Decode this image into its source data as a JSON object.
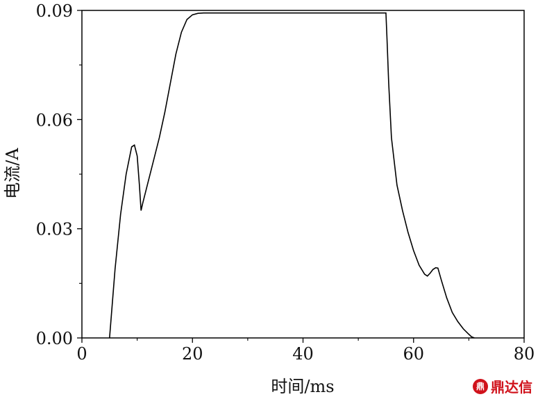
{
  "chart_data": {
    "type": "line",
    "title": "",
    "xlabel": "时间/ms",
    "ylabel": "电流/A",
    "xlim": [
      0,
      80
    ],
    "ylim": [
      0,
      0.09
    ],
    "xticks": [
      0,
      20,
      40,
      60,
      80
    ],
    "xtick_labels": [
      "0",
      "20",
      "40",
      "60",
      "80"
    ],
    "yticks": [
      0,
      0.03,
      0.06,
      0.09
    ],
    "ytick_labels": [
      "0.00",
      "0.03",
      "0.06",
      "0.09"
    ],
    "grid": false,
    "series": [
      {
        "name": "",
        "color": "#000000",
        "x": [
          5.0,
          6.0,
          7.0,
          8.0,
          9.0,
          9.5,
          10.0,
          10.4,
          10.7,
          11.0,
          12.0,
          13.0,
          14.0,
          15.0,
          16.0,
          17.0,
          18.0,
          19.0,
          20.0,
          21.0,
          22.0,
          25.0,
          30.0,
          40.0,
          50.0,
          55.0,
          55.2,
          55.5,
          56.0,
          57.0,
          58.0,
          59.0,
          60.0,
          61.0,
          62.0,
          62.5,
          63.0,
          63.5,
          64.0,
          64.4,
          65.0,
          66.0,
          67.0,
          68.0,
          69.0,
          70.0,
          70.5,
          71.0
        ],
        "y": [
          0.0,
          0.019,
          0.034,
          0.045,
          0.0525,
          0.053,
          0.05,
          0.042,
          0.035,
          0.037,
          0.043,
          0.049,
          0.055,
          0.062,
          0.07,
          0.078,
          0.084,
          0.0875,
          0.0888,
          0.0892,
          0.0893,
          0.0893,
          0.0893,
          0.0893,
          0.0893,
          0.0893,
          0.082,
          0.07,
          0.055,
          0.042,
          0.035,
          0.029,
          0.024,
          0.02,
          0.0175,
          0.017,
          0.0178,
          0.0188,
          0.0193,
          0.0192,
          0.016,
          0.011,
          0.007,
          0.0045,
          0.0025,
          0.001,
          0.0003,
          0.0
        ]
      }
    ]
  },
  "watermark": {
    "icon_text": "鼎",
    "text": "鼎达信"
  }
}
